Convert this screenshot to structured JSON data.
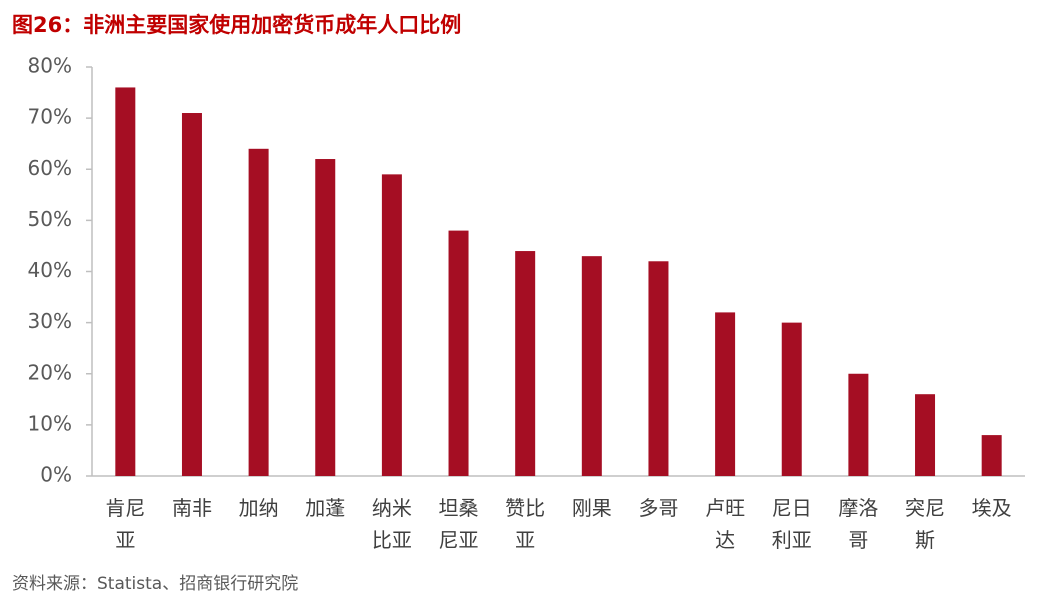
{
  "chart_data": {
    "type": "bar",
    "title": "图26：非洲主要国家使用加密货币成年人口比例",
    "source": "资料来源：Statista、招商银行研究院",
    "categories": [
      "肯尼亚",
      "南非",
      "加纳",
      "加蓬",
      "纳米比亚",
      "坦桑尼亚",
      "赞比亚",
      "刚果",
      "多哥",
      "卢旺达",
      "尼日利亚",
      "摩洛哥",
      "突尼斯",
      "埃及"
    ],
    "values": [
      76,
      71,
      64,
      62,
      59,
      48,
      44,
      43,
      42,
      32,
      30,
      20,
      16,
      8
    ],
    "color": "#a50e23",
    "ylim": [
      0,
      80
    ],
    "yticks": [
      {
        "value": 0,
        "label": "0%"
      },
      {
        "value": 10,
        "label": "10%"
      },
      {
        "value": 20,
        "label": "20%"
      },
      {
        "value": 30,
        "label": "30%"
      },
      {
        "value": 40,
        "label": "40%"
      },
      {
        "value": 50,
        "label": "50%"
      },
      {
        "value": 60,
        "label": "60%"
      },
      {
        "value": 70,
        "label": "70%"
      },
      {
        "value": 80,
        "label": "80%"
      }
    ],
    "grid": false
  }
}
